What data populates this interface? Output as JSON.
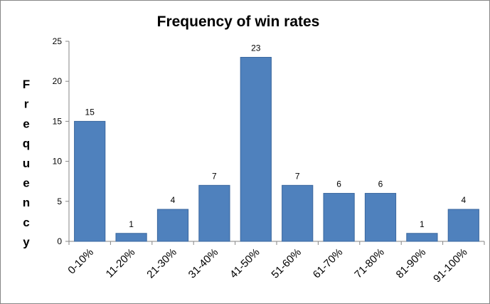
{
  "chart_data": {
    "type": "bar",
    "title": "Frequency of win rates",
    "xlabel": "",
    "ylabel": "Frequency",
    "categories": [
      "0-10%",
      "11-20%",
      "21-30%",
      "31-40%",
      "41-50%",
      "51-60%",
      "61-70%",
      "71-80%",
      "81-90%",
      "91-100%"
    ],
    "values": [
      15,
      1,
      4,
      7,
      23,
      7,
      6,
      6,
      1,
      4
    ],
    "ylim": [
      0,
      25
    ],
    "yticks": [
      0,
      5,
      10,
      15,
      20,
      25
    ],
    "grid": false,
    "legend": "none",
    "data_labels": true,
    "bar_color": "#4F81BD",
    "bar_edge_color": "#3A679E",
    "axis_color": "#868686"
  }
}
